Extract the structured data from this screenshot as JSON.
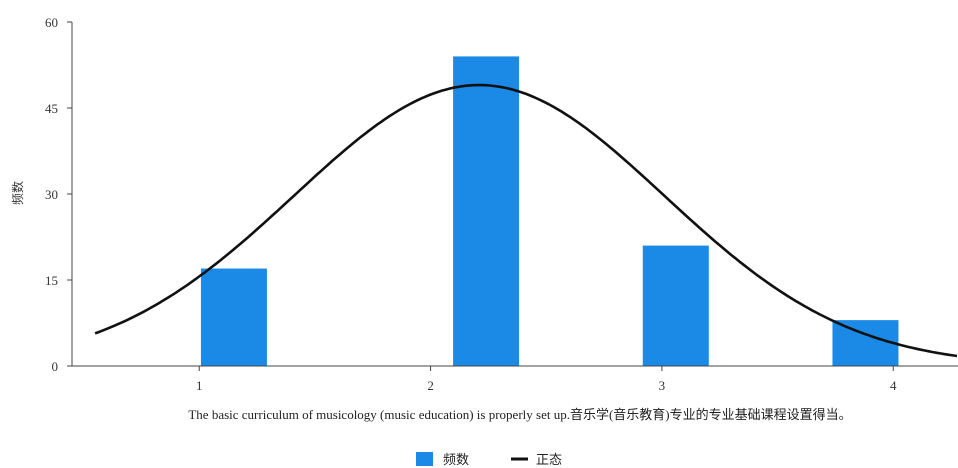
{
  "chart_data": {
    "type": "bar",
    "title": "",
    "xlabel": "The basic curriculum of musicology (music education) is properly set up.音乐学(音乐教育)专业的专业基础课程设置得当。",
    "ylabel": "频数",
    "categories": [
      "1",
      "2",
      "3",
      "4"
    ],
    "x_ticks": [
      1,
      2,
      3,
      4
    ],
    "xlim": [
      0.45,
      4.28
    ],
    "ylim": [
      0,
      60
    ],
    "y_ticks": [
      0,
      15,
      30,
      45,
      60
    ],
    "grid": false,
    "legend_position": "bottom-center",
    "series": [
      {
        "name": "频数",
        "type": "bar",
        "color": "#1a8ae6",
        "x": [
          1.15,
          2.24,
          3.06,
          3.88
        ],
        "values": [
          17,
          54,
          21,
          8
        ]
      },
      {
        "name": "正态",
        "type": "line",
        "color": "#111111",
        "mean": 2.21,
        "sd": 0.8,
        "peak": 49
      }
    ]
  }
}
